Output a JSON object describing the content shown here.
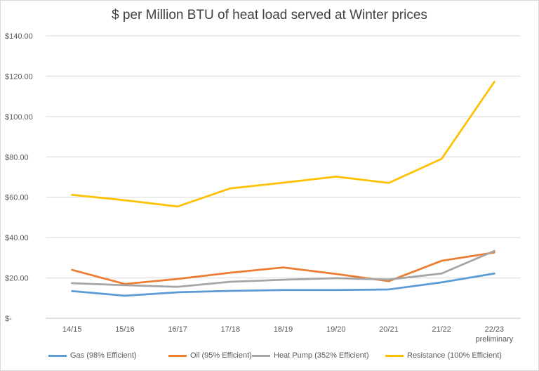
{
  "chart_data": {
    "type": "line",
    "title": "$ per Million BTU of heat load served at Winter prices",
    "xlabel": "",
    "ylabel": "",
    "categories": [
      "14/15",
      "15/16",
      "16/17",
      "17/18",
      "18/19",
      "19/20",
      "20/21",
      "21/22",
      "22/23"
    ],
    "category_sublabels": [
      "",
      "",
      "",
      "",
      "",
      "",
      "",
      "",
      "preliminary"
    ],
    "y_tick_labels": [
      "$-",
      "$20.00",
      "$40.00",
      "$60.00",
      "$80.00",
      "$100.00",
      "$120.00",
      "$140.00"
    ],
    "ylim": [
      0,
      140
    ],
    "grid": true,
    "legend_position": "bottom",
    "series": [
      {
        "name": "Gas (98% Efficient)",
        "color": "#5b9bd5",
        "values": [
          13.5,
          11.2,
          12.9,
          13.6,
          14.0,
          14.0,
          14.3,
          17.8,
          22.2
        ]
      },
      {
        "name": "Oil (95% Efficient)",
        "color": "#ed7d31",
        "values": [
          24.0,
          17.0,
          19.5,
          22.6,
          25.2,
          22.0,
          18.4,
          28.5,
          32.6
        ]
      },
      {
        "name": "Heat Pump (352% Efficient)",
        "color": "#a5a5a5",
        "values": [
          17.4,
          16.4,
          15.6,
          18.1,
          19.1,
          19.9,
          19.2,
          22.2,
          33.4
        ]
      },
      {
        "name": "Resistance (100% Efficient)",
        "color": "#ffc000",
        "values": [
          61.2,
          58.5,
          55.4,
          64.4,
          67.2,
          70.2,
          67.1,
          79.0,
          117.2
        ]
      }
    ]
  }
}
